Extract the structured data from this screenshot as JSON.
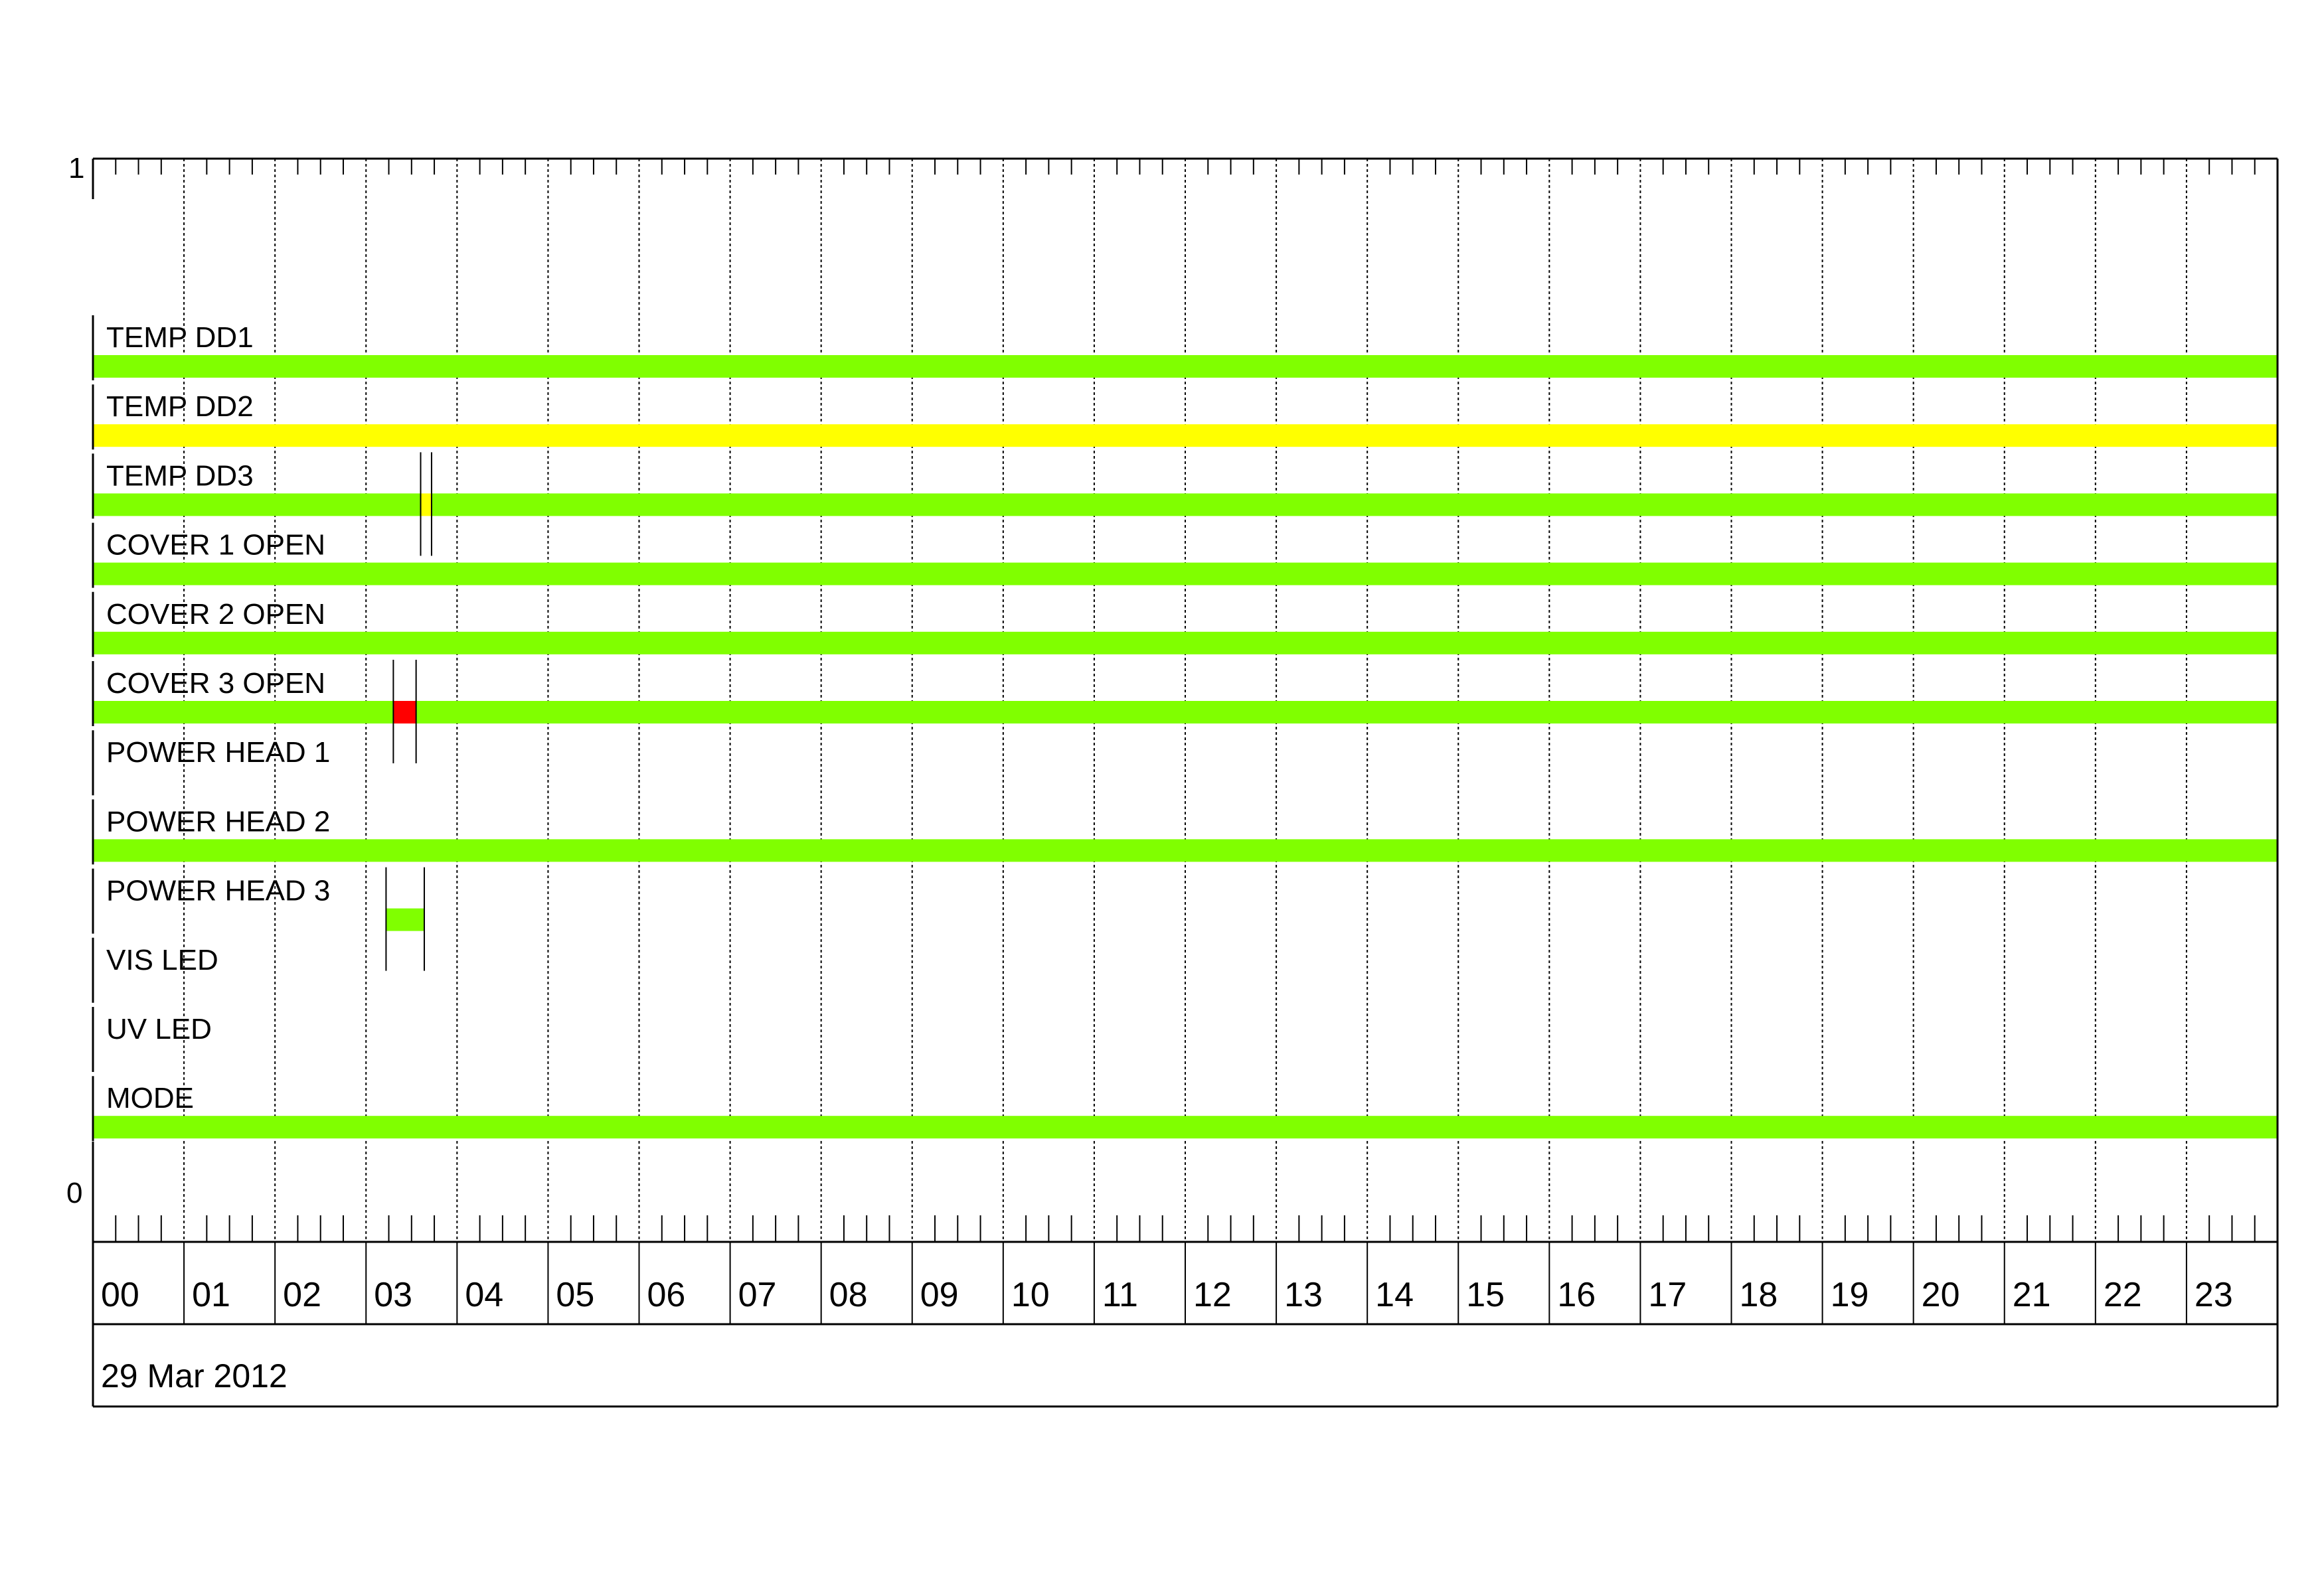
{
  "chart_data": {
    "type": "timeline",
    "date_label": "29 Mar 2012",
    "y_ticks": [
      "1",
      "0"
    ],
    "hours": [
      "00",
      "01",
      "02",
      "03",
      "04",
      "05",
      "06",
      "07",
      "08",
      "09",
      "10",
      "11",
      "12",
      "13",
      "14",
      "15",
      "16",
      "17",
      "18",
      "19",
      "20",
      "21",
      "22",
      "23"
    ],
    "x_range_hours": [
      0,
      24
    ],
    "grid": true,
    "colors": {
      "ok": "#80ff00",
      "warning": "#ffff00",
      "alarm": "#ff0000"
    },
    "rows": [
      {
        "label": "TEMP DD1",
        "segments": [
          {
            "start": 0,
            "end": 24,
            "state": "ok"
          }
        ],
        "markers": []
      },
      {
        "label": "TEMP DD2",
        "segments": [
          {
            "start": 0,
            "end": 24,
            "state": "warning"
          }
        ],
        "markers": []
      },
      {
        "label": "TEMP DD3",
        "segments": [
          {
            "start": 0,
            "end": 3.6,
            "state": "ok"
          },
          {
            "start": 3.6,
            "end": 3.72,
            "state": "warning"
          },
          {
            "start": 3.72,
            "end": 24,
            "state": "ok"
          }
        ],
        "markers": [
          3.6,
          3.72
        ]
      },
      {
        "label": "COVER 1 OPEN",
        "segments": [
          {
            "start": 0,
            "end": 24,
            "state": "ok"
          }
        ],
        "markers": []
      },
      {
        "label": "COVER 2 OPEN",
        "segments": [
          {
            "start": 0,
            "end": 24,
            "state": "ok"
          }
        ],
        "markers": []
      },
      {
        "label": "COVER 3 OPEN",
        "segments": [
          {
            "start": 0,
            "end": 3.3,
            "state": "ok"
          },
          {
            "start": 3.3,
            "end": 3.55,
            "state": "alarm"
          },
          {
            "start": 3.55,
            "end": 24,
            "state": "ok"
          }
        ],
        "markers": [
          3.3,
          3.55
        ]
      },
      {
        "label": "POWER HEAD 1",
        "segments": [],
        "markers": []
      },
      {
        "label": "POWER HEAD 2",
        "segments": [
          {
            "start": 0,
            "end": 24,
            "state": "ok"
          }
        ],
        "markers": []
      },
      {
        "label": "POWER HEAD 3",
        "segments": [
          {
            "start": 3.22,
            "end": 3.64,
            "state": "ok"
          }
        ],
        "markers": [
          3.22,
          3.64
        ]
      },
      {
        "label": "VIS LED",
        "segments": [],
        "markers": []
      },
      {
        "label": "UV LED",
        "segments": [],
        "markers": []
      },
      {
        "label": "MODE",
        "segments": [
          {
            "start": 0,
            "end": 24,
            "state": "ok"
          }
        ],
        "markers": []
      }
    ]
  }
}
